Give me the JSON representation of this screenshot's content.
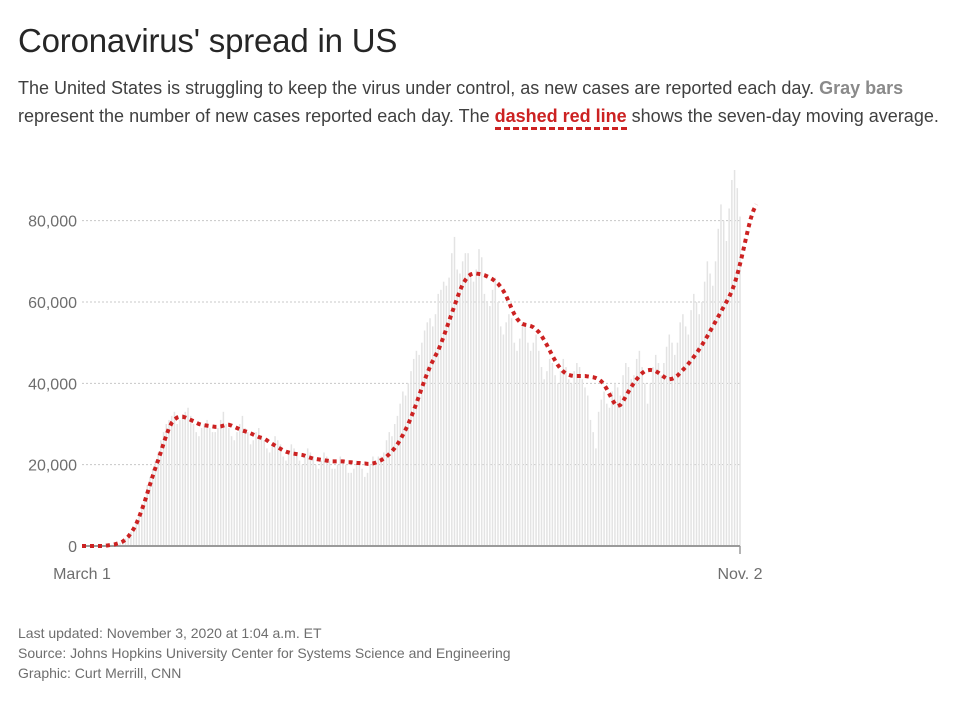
{
  "header": {
    "title": "Coronavirus' spread in US",
    "description": {
      "part1": "The United States is struggling to keep the virus under control, as new cases are reported each day. ",
      "gray_key": "Gray bars",
      "part2": " represent the number of new cases reported each day. The ",
      "red_key": "dashed red line",
      "part3": " shows the seven-day moving average."
    }
  },
  "colors": {
    "bars": "#e3e3e3",
    "moving_average": "#cc2222",
    "gridline": "#c8c8c8",
    "baseline": "#9a9a9a",
    "tick_text": "#6e6e6e"
  },
  "chart_data": {
    "type": "bar",
    "title": "Coronavirus' spread in US",
    "xlabel": "",
    "ylabel": "",
    "x_range": [
      "March 1",
      "Nov. 2"
    ],
    "ylim": [
      0,
      90000
    ],
    "yticks": [
      0,
      20000,
      40000,
      60000,
      80000
    ],
    "ytick_labels": [
      "0",
      "20,000",
      "40,000",
      "60,000",
      "80,000"
    ],
    "xtick_labels": [
      "March 1",
      "Nov. 2"
    ],
    "grid": true,
    "legend": "none",
    "series": [
      {
        "type": "bar",
        "values": [
          0,
          0,
          0,
          0,
          0,
          0,
          0,
          0,
          0,
          100,
          200,
          300,
          400,
          600,
          800,
          1200,
          1800,
          2500,
          3500,
          4500,
          6000,
          8000,
          10000,
          12000,
          15000,
          17000,
          19000,
          21000,
          23000,
          26000,
          28000,
          30000,
          31000,
          32000,
          33000,
          30000,
          31000,
          32000,
          33000,
          34000,
          32000,
          30000,
          28000,
          27000,
          29000,
          30000,
          31000,
          29000,
          28000,
          28000,
          29000,
          31000,
          33000,
          30000,
          29000,
          27000,
          26000,
          28000,
          30000,
          32000,
          29000,
          28000,
          25000,
          26000,
          28000,
          29000,
          27000,
          26000,
          24000,
          23000,
          25000,
          27000,
          26000,
          25000,
          22000,
          21000,
          23000,
          25000,
          24000,
          23000,
          21000,
          20000,
          22000,
          24000,
          23000,
          22000,
          20000,
          19000,
          21000,
          23000,
          22000,
          21000,
          19000,
          19000,
          20000,
          22000,
          21000,
          20000,
          18000,
          18000,
          19000,
          21000,
          20000,
          19000,
          17000,
          18000,
          20000,
          22000,
          21000,
          22000,
          22000,
          23000,
          26000,
          28000,
          27000,
          30000,
          32000,
          35000,
          38000,
          37000,
          40000,
          43000,
          46000,
          48000,
          47000,
          50000,
          53000,
          55000,
          56000,
          54000,
          57000,
          62000,
          63000,
          65000,
          64000,
          66000,
          72000,
          76000,
          68000,
          67000,
          70000,
          72000,
          72000,
          66000,
          65000,
          68000,
          73000,
          71000,
          62000,
          60000,
          59000,
          63000,
          66000,
          60000,
          54000,
          52000,
          55000,
          57000,
          56000,
          50000,
          48000,
          51000,
          55000,
          54000,
          50000,
          48000,
          50000,
          52000,
          48000,
          44000,
          41000,
          43000,
          46000,
          45000,
          42000,
          40000,
          43000,
          46000,
          44000,
          41000,
          40000,
          43000,
          45000,
          44000,
          41000,
          39000,
          37000,
          31000,
          28000,
          24000,
          33000,
          36000,
          38000,
          35000,
          34000,
          38000,
          40000,
          39000,
          37000,
          42000,
          45000,
          44000,
          41000,
          42000,
          46000,
          48000,
          44000,
          40000,
          35000,
          40000,
          44000,
          47000,
          45000,
          42000,
          45000,
          49000,
          52000,
          50000,
          47000,
          50000,
          55000,
          57000,
          54000,
          52000,
          58000,
          62000,
          60000,
          57000,
          60000,
          65000,
          70000,
          67000,
          64000,
          70000,
          78000,
          84000,
          80000,
          75000,
          83000,
          90000,
          99000,
          88000,
          81000
        ]
      },
      {
        "type": "line",
        "style": "dashed",
        "values": [
          0,
          0,
          0,
          0,
          0,
          0,
          0,
          0,
          0,
          100,
          200,
          300,
          400,
          600,
          800,
          1100,
          1600,
          2300,
          3200,
          4200,
          5500,
          7100,
          8900,
          10800,
          12900,
          15100,
          17200,
          19200,
          21100,
          23100,
          25200,
          27200,
          29000,
          30300,
          31100,
          31600,
          31800,
          31800,
          31600,
          31300,
          31000,
          30700,
          30300,
          30000,
          29800,
          29700,
          29600,
          29500,
          29400,
          29300,
          29300,
          29400,
          29600,
          29800,
          29800,
          29600,
          29300,
          29000,
          28700,
          28400,
          28200,
          28000,
          27700,
          27400,
          27100,
          26800,
          26600,
          26400,
          26000,
          25500,
          25100,
          24700,
          24300,
          23900,
          23500,
          23200,
          23000,
          22800,
          22700,
          22600,
          22500,
          22400,
          22200,
          21900,
          21700,
          21500,
          21400,
          21300,
          21200,
          21100,
          21000,
          20900,
          20800,
          20800,
          20800,
          20800,
          20800,
          20700,
          20600,
          20600,
          20500,
          20400,
          20400,
          20300,
          20300,
          20200,
          20200,
          20300,
          20500,
          20800,
          21100,
          21500,
          22000,
          22600,
          23300,
          24100,
          25000,
          26100,
          27300,
          28600,
          30000,
          31600,
          33300,
          35100,
          37000,
          38900,
          40800,
          42500,
          44100,
          45500,
          46800,
          48100,
          49700,
          51500,
          53400,
          55300,
          57200,
          59100,
          61000,
          62800,
          64300,
          65400,
          66300,
          66800,
          67000,
          67000,
          66900,
          66800,
          66600,
          66300,
          66000,
          65600,
          65100,
          64500,
          63700,
          62700,
          61500,
          60000,
          58400,
          57000,
          55900,
          55100,
          54600,
          54400,
          54300,
          54100,
          53800,
          53300,
          52600,
          51700,
          50600,
          49400,
          48100,
          46800,
          45600,
          44500,
          43600,
          42900,
          42400,
          42100,
          41900,
          41800,
          41800,
          41800,
          41800,
          41800,
          41700,
          41600,
          41500,
          41300,
          41000,
          40500,
          39700,
          38600,
          37300,
          36000,
          34900,
          34400,
          34700,
          35600,
          36800,
          38000,
          39100,
          40100,
          41000,
          41800,
          42500,
          43000,
          43200,
          43300,
          43200,
          43000,
          42600,
          42100,
          41600,
          41200,
          41000,
          41100,
          41400,
          41900,
          42600,
          43300,
          44000,
          44800,
          45600,
          46500,
          47400,
          48400,
          49400,
          50500,
          51600,
          52800,
          54000,
          55200,
          56400,
          57600,
          58800,
          60000,
          61200,
          62700,
          64500,
          66700,
          69300,
          72100,
          75100,
          78000,
          80600,
          82600,
          84000
        ]
      }
    ]
  },
  "footer": {
    "updated": "Last updated: November 3, 2020 at 1:04 a.m. ET",
    "source": "Source: Johns Hopkins University Center for Systems Science and Engineering",
    "credit": "Graphic: Curt Merrill, CNN"
  }
}
